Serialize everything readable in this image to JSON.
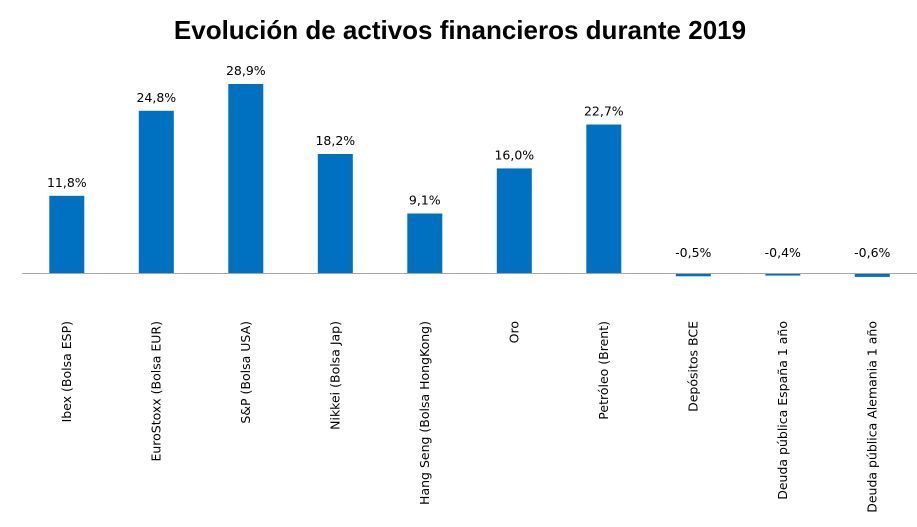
{
  "chart_data": {
    "type": "bar",
    "title": "Evolución de activos financieros durante 2019",
    "xlabel": "",
    "ylabel": "",
    "categories": [
      "Ibex (Bolsa ESP)",
      "EuroStoxx (Bolsa EUR)",
      "S&P (Bolsa USA)",
      "Nikkei (Bolsa Jap)",
      "Hang Seng (Bolsa HongKong)",
      "Oro",
      "Petróleo (Brent)",
      "Depósitos BCE",
      "Deuda pública España 1 año",
      "Deuda pública Alemania 1 año"
    ],
    "values": [
      11.8,
      24.8,
      28.9,
      18.2,
      9.1,
      16.0,
      22.7,
      -0.5,
      -0.4,
      -0.6
    ],
    "value_labels": [
      "11,8%",
      "24,8%",
      "28,9%",
      "18,2%",
      "9,1%",
      "16,0%",
      "22,7%",
      "-0,5%",
      "-0,4%",
      "-0,6%"
    ],
    "ylim": [
      -1,
      30
    ],
    "grid": false,
    "legend": "none",
    "bar_color": "#0070C0",
    "axis_color": "#A6A6A6"
  }
}
